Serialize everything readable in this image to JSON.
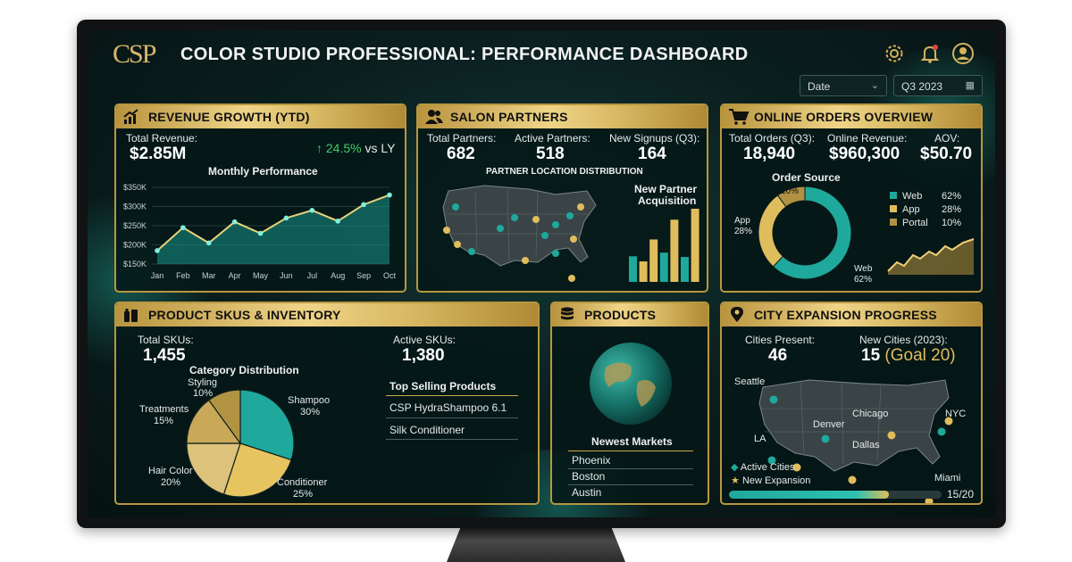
{
  "header": {
    "logo": "CSP",
    "title": "COLOR STUDIO PROFESSIONAL: PERFORMANCE DASHBOARD",
    "icons": [
      "gear-icon",
      "bell-icon",
      "user-icon"
    ],
    "filters": {
      "date_label": "Date",
      "period": "Q3 2023"
    }
  },
  "revenue": {
    "title": "REVENUE GROWTH (YTD)",
    "total_label": "Total Revenue:",
    "total_value": "$2.85M",
    "growth": "24.5%",
    "growth_suffix": "vs LY",
    "chart_title": "Monthly Performance"
  },
  "salon": {
    "title": "SALON PARTNERS",
    "total_label": "Total Partners:",
    "total_value": "682",
    "active_label": "Active Partners:",
    "active_value": "518",
    "signups_label": "New Signups (Q3):",
    "signups_value": "164",
    "map_title": "PARTNER LOCATION DISTRIBUTION",
    "acq_title_1": "New Partner",
    "acq_title_2": "Acquisition"
  },
  "orders": {
    "title": "ONLINE ORDERS OVERVIEW",
    "total_label": "Total Orders (Q3):",
    "total_value": "18,940",
    "revenue_label": "Online Revenue:",
    "revenue_value": "$960,300",
    "aov_label": "AOV:",
    "aov_value": "$50.70",
    "source_title": "Order Source",
    "donut_app_label": "App",
    "donut_app_pct": "28%",
    "donut_web_label": "Web",
    "donut_web_pct": "62%",
    "donut_portal_pct": "10%",
    "legend": [
      {
        "name": "Web",
        "pct": "62%",
        "color": "#1fa89c"
      },
      {
        "name": "App",
        "pct": "28%",
        "color": "#e0bd5c"
      },
      {
        "name": "Portal",
        "pct": "10%",
        "color": "#b09242"
      }
    ]
  },
  "skus": {
    "title": "PRODUCT SKUS & INVENTORY",
    "total_label": "Total SKUs:",
    "total_value": "1,455",
    "active_label": "Active SKUs:",
    "active_value": "1,380",
    "dist_title": "Category Distribution",
    "pie_labels": [
      {
        "name": "Shampoo",
        "pct": "30%"
      },
      {
        "name": "Conditioner",
        "pct": "25%"
      },
      {
        "name": "Hair Color",
        "pct": "20%"
      },
      {
        "name": "Treatments",
        "pct": "15%"
      },
      {
        "name": "Styling",
        "pct": "10%"
      }
    ],
    "top_title": "Top Selling Products",
    "top_products": [
      "CSP HydraShampoo 6.1",
      "Silk Conditioner"
    ]
  },
  "products": {
    "title": "PRODUCTS",
    "markets_title": "Newest Markets",
    "markets": [
      "Phoenix",
      "Boston",
      "Austin"
    ]
  },
  "city": {
    "title": "CITY EXPANSION PROGRESS",
    "present_label": "Cities Present:",
    "present_value": "46",
    "new_label": "New Cities (2023):",
    "new_value": "15",
    "goal": "(Goal 20)",
    "cities": [
      "Seattle",
      "Chicago",
      "NYC",
      "Denver",
      "LA",
      "Dallas",
      "Miami"
    ],
    "legend_active": "Active Cities",
    "legend_new": "New Expansion",
    "progress_text": "15/20",
    "progress_fraction": 0.75
  },
  "chart_data": [
    {
      "type": "area",
      "title": "Monthly Performance",
      "categories": [
        "Jan",
        "Feb",
        "Mar",
        "Apr",
        "May",
        "Jun",
        "Jul",
        "Aug",
        "Sep",
        "Oct"
      ],
      "y_ticks": [
        "$350K",
        "$300K",
        "$250K",
        "$200K",
        "$150K"
      ],
      "values": [
        185,
        245,
        205,
        260,
        230,
        270,
        290,
        262,
        305,
        330
      ],
      "ylim": [
        150,
        350
      ],
      "grid": true
    },
    {
      "type": "bar",
      "title": "New Partner Acquisition",
      "values": [
        35,
        28,
        58,
        40,
        85,
        34,
        100
      ],
      "colors": [
        "#1fa89c",
        "#e0bd5c",
        "#e0bd5c",
        "#1fa89c",
        "#e0bd5c",
        "#1fa89c",
        "#e0bd5c"
      ]
    },
    {
      "type": "pie",
      "title": "Order Source",
      "labels": [
        "Web",
        "App",
        "Portal"
      ],
      "values": [
        62,
        28,
        10
      ]
    },
    {
      "type": "pie",
      "title": "Category Distribution",
      "labels": [
        "Shampoo",
        "Conditioner",
        "Hair Color",
        "Treatments",
        "Styling"
      ],
      "values": [
        30,
        25,
        20,
        15,
        10
      ]
    }
  ]
}
